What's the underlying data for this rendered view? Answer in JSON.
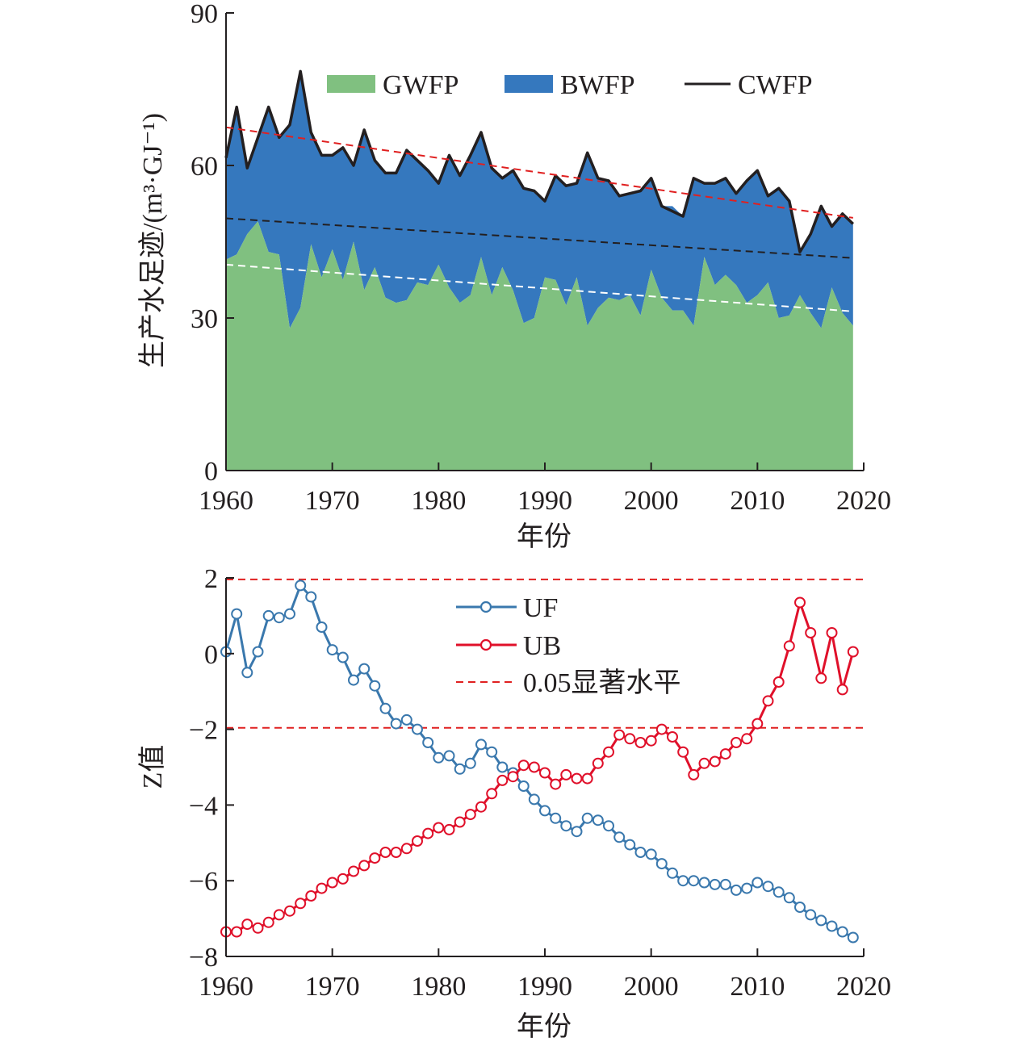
{
  "chart_data": [
    {
      "type": "area",
      "ylabel": "生产水足迹/(m³·GJ⁻¹)",
      "xlabel": "年份",
      "xlim": [
        1960,
        2020
      ],
      "ylim": [
        0,
        90
      ],
      "x_ticks": [
        "1960",
        "1970",
        "1980",
        "1990",
        "2000",
        "2010",
        "2020"
      ],
      "y_ticks": [
        "0",
        "30",
        "60",
        "90"
      ],
      "legend_position": "top",
      "years": [
        1960,
        1961,
        1962,
        1963,
        1964,
        1965,
        1966,
        1967,
        1968,
        1969,
        1970,
        1971,
        1972,
        1973,
        1974,
        1975,
        1976,
        1977,
        1978,
        1979,
        1980,
        1981,
        1982,
        1983,
        1984,
        1985,
        1986,
        1987,
        1988,
        1989,
        1990,
        1991,
        1992,
        1993,
        1994,
        1995,
        1996,
        1997,
        1998,
        1999,
        2000,
        2001,
        2002,
        2003,
        2004,
        2005,
        2006,
        2007,
        2008,
        2009,
        2010,
        2011,
        2012,
        2013,
        2014,
        2015,
        2016,
        2017,
        2018,
        2019
      ],
      "series": [
        {
          "name": "GWFP",
          "color": "#80c080",
          "values": [
            41.5,
            42.5,
            46.5,
            49,
            43,
            42.5,
            28,
            32,
            44.5,
            38,
            43.5,
            37.5,
            45,
            35.5,
            40,
            34,
            33,
            33.5,
            37,
            36.5,
            40.5,
            36,
            33,
            34.5,
            42,
            34.5,
            40,
            35.5,
            29,
            30,
            38,
            37.5,
            32.5,
            38,
            28.5,
            32,
            34,
            33.5,
            34.5,
            30.5,
            39.5,
            34,
            31.5,
            31.5,
            28.5,
            42,
            36.5,
            38.5,
            36.5,
            33,
            34.5,
            37,
            30,
            30.5,
            34.5,
            31,
            28,
            36,
            31,
            28.5
          ]
        },
        {
          "name": "BWFP",
          "color": "#3578be",
          "values": [
            20,
            29,
            13,
            16.5,
            28.5,
            23,
            40,
            46.5,
            22,
            24,
            18.5,
            26,
            15,
            31.5,
            21,
            24.5,
            25.5,
            29.5,
            24,
            22.5,
            16,
            26,
            25,
            27.5,
            24.5,
            25,
            17.5,
            23.5,
            26.5,
            25,
            15,
            20.5,
            23.5,
            18.5,
            34,
            25.5,
            23,
            20.5,
            20,
            24.5,
            18,
            18,
            20.5,
            18.5,
            29,
            14.5,
            20,
            19,
            18,
            24,
            24.5,
            17,
            25.5,
            22.5,
            8.5,
            15.5,
            24,
            12,
            19.5,
            20
          ]
        },
        {
          "name": "CWFP",
          "color": "#231f20",
          "values": [
            61.5,
            71.5,
            59.5,
            65.5,
            71.5,
            65.5,
            68,
            78.5,
            66.5,
            62,
            62,
            63.5,
            60,
            67,
            61,
            58.5,
            58.5,
            63,
            61,
            59,
            56.5,
            62,
            58,
            62,
            66.5,
            59.5,
            57.5,
            59,
            55.5,
            55,
            53,
            58,
            56,
            56.5,
            62.5,
            57.5,
            57,
            54,
            54.5,
            55,
            57.5,
            52,
            51,
            50,
            57.5,
            56.5,
            56.5,
            57.5,
            54.5,
            57,
            59,
            54,
            55.5,
            53,
            43,
            46.5,
            52,
            48,
            50.5,
            48.5
          ]
        }
      ],
      "trend_lines": [
        {
          "of": "CWFP",
          "color": "#e02020",
          "start": [
            1960,
            67.5
          ],
          "end": [
            2019,
            49.7
          ]
        },
        {
          "of": "BWFP",
          "color": "#231f20",
          "start": [
            1960,
            49.6
          ],
          "end": [
            2019,
            41.8
          ]
        },
        {
          "of": "GWFP",
          "color": "#ffffff",
          "start": [
            1960,
            40.5
          ],
          "end": [
            2019,
            31.3
          ]
        }
      ]
    },
    {
      "type": "line",
      "ylabel": "Z值",
      "xlabel": "年份",
      "xlim": [
        1960,
        2020
      ],
      "ylim": [
        -8,
        2
      ],
      "x_ticks": [
        "1960",
        "1970",
        "1980",
        "1990",
        "2000",
        "2010",
        "2020"
      ],
      "y_ticks": [
        "2",
        "0",
        "−2",
        "−4",
        "−6",
        "−8"
      ],
      "y_tick_values": [
        2,
        0,
        -2,
        -4,
        -6,
        -8
      ],
      "legend_position": "top-center",
      "significance_label": "0.05显著水平",
      "significance_levels": [
        1.96,
        -1.96
      ],
      "significance_color": "#e02020",
      "years": [
        1960,
        1961,
        1962,
        1963,
        1964,
        1965,
        1966,
        1967,
        1968,
        1969,
        1970,
        1971,
        1972,
        1973,
        1974,
        1975,
        1976,
        1977,
        1978,
        1979,
        1980,
        1981,
        1982,
        1983,
        1984,
        1985,
        1986,
        1987,
        1988,
        1989,
        1990,
        1991,
        1992,
        1993,
        1994,
        1995,
        1996,
        1997,
        1998,
        1999,
        2000,
        2001,
        2002,
        2003,
        2004,
        2005,
        2006,
        2007,
        2008,
        2009,
        2010,
        2011,
        2012,
        2013,
        2014,
        2015,
        2016,
        2017,
        2018,
        2019
      ],
      "series": [
        {
          "name": "UF",
          "color": "#3a78ad",
          "values": [
            0.05,
            1.05,
            -0.5,
            0.05,
            1.0,
            0.95,
            1.05,
            1.8,
            1.5,
            0.7,
            0.1,
            -0.1,
            -0.7,
            -0.4,
            -0.85,
            -1.45,
            -1.85,
            -1.75,
            -2.0,
            -2.35,
            -2.75,
            -2.7,
            -3.05,
            -2.9,
            -2.4,
            -2.6,
            -3.0,
            -3.15,
            -3.5,
            -3.85,
            -4.15,
            -4.35,
            -4.55,
            -4.7,
            -4.35,
            -4.4,
            -4.55,
            -4.85,
            -5.05,
            -5.25,
            -5.3,
            -5.55,
            -5.8,
            -6.0,
            -6.0,
            -6.05,
            -6.1,
            -6.1,
            -6.25,
            -6.2,
            -6.05,
            -6.15,
            -6.3,
            -6.45,
            -6.7,
            -6.9,
            -7.05,
            -7.2,
            -7.35,
            -7.5
          ]
        },
        {
          "name": "UB",
          "color": "#e0102a",
          "values": [
            -7.35,
            -7.35,
            -7.15,
            -7.25,
            -7.1,
            -6.9,
            -6.8,
            -6.6,
            -6.4,
            -6.2,
            -6.05,
            -5.95,
            -5.75,
            -5.6,
            -5.4,
            -5.25,
            -5.25,
            -5.15,
            -4.95,
            -4.75,
            -4.6,
            -4.65,
            -4.45,
            -4.25,
            -4.05,
            -3.7,
            -3.35,
            -3.25,
            -2.95,
            -3.0,
            -3.15,
            -3.45,
            -3.2,
            -3.3,
            -3.3,
            -2.9,
            -2.6,
            -2.15,
            -2.25,
            -2.35,
            -2.3,
            -2.0,
            -2.2,
            -2.6,
            -3.2,
            -2.9,
            -2.85,
            -2.65,
            -2.35,
            -2.25,
            -1.85,
            -1.25,
            -0.75,
            0.2,
            1.35,
            0.55,
            -0.65,
            0.55,
            -0.95,
            0.05
          ]
        }
      ]
    }
  ]
}
